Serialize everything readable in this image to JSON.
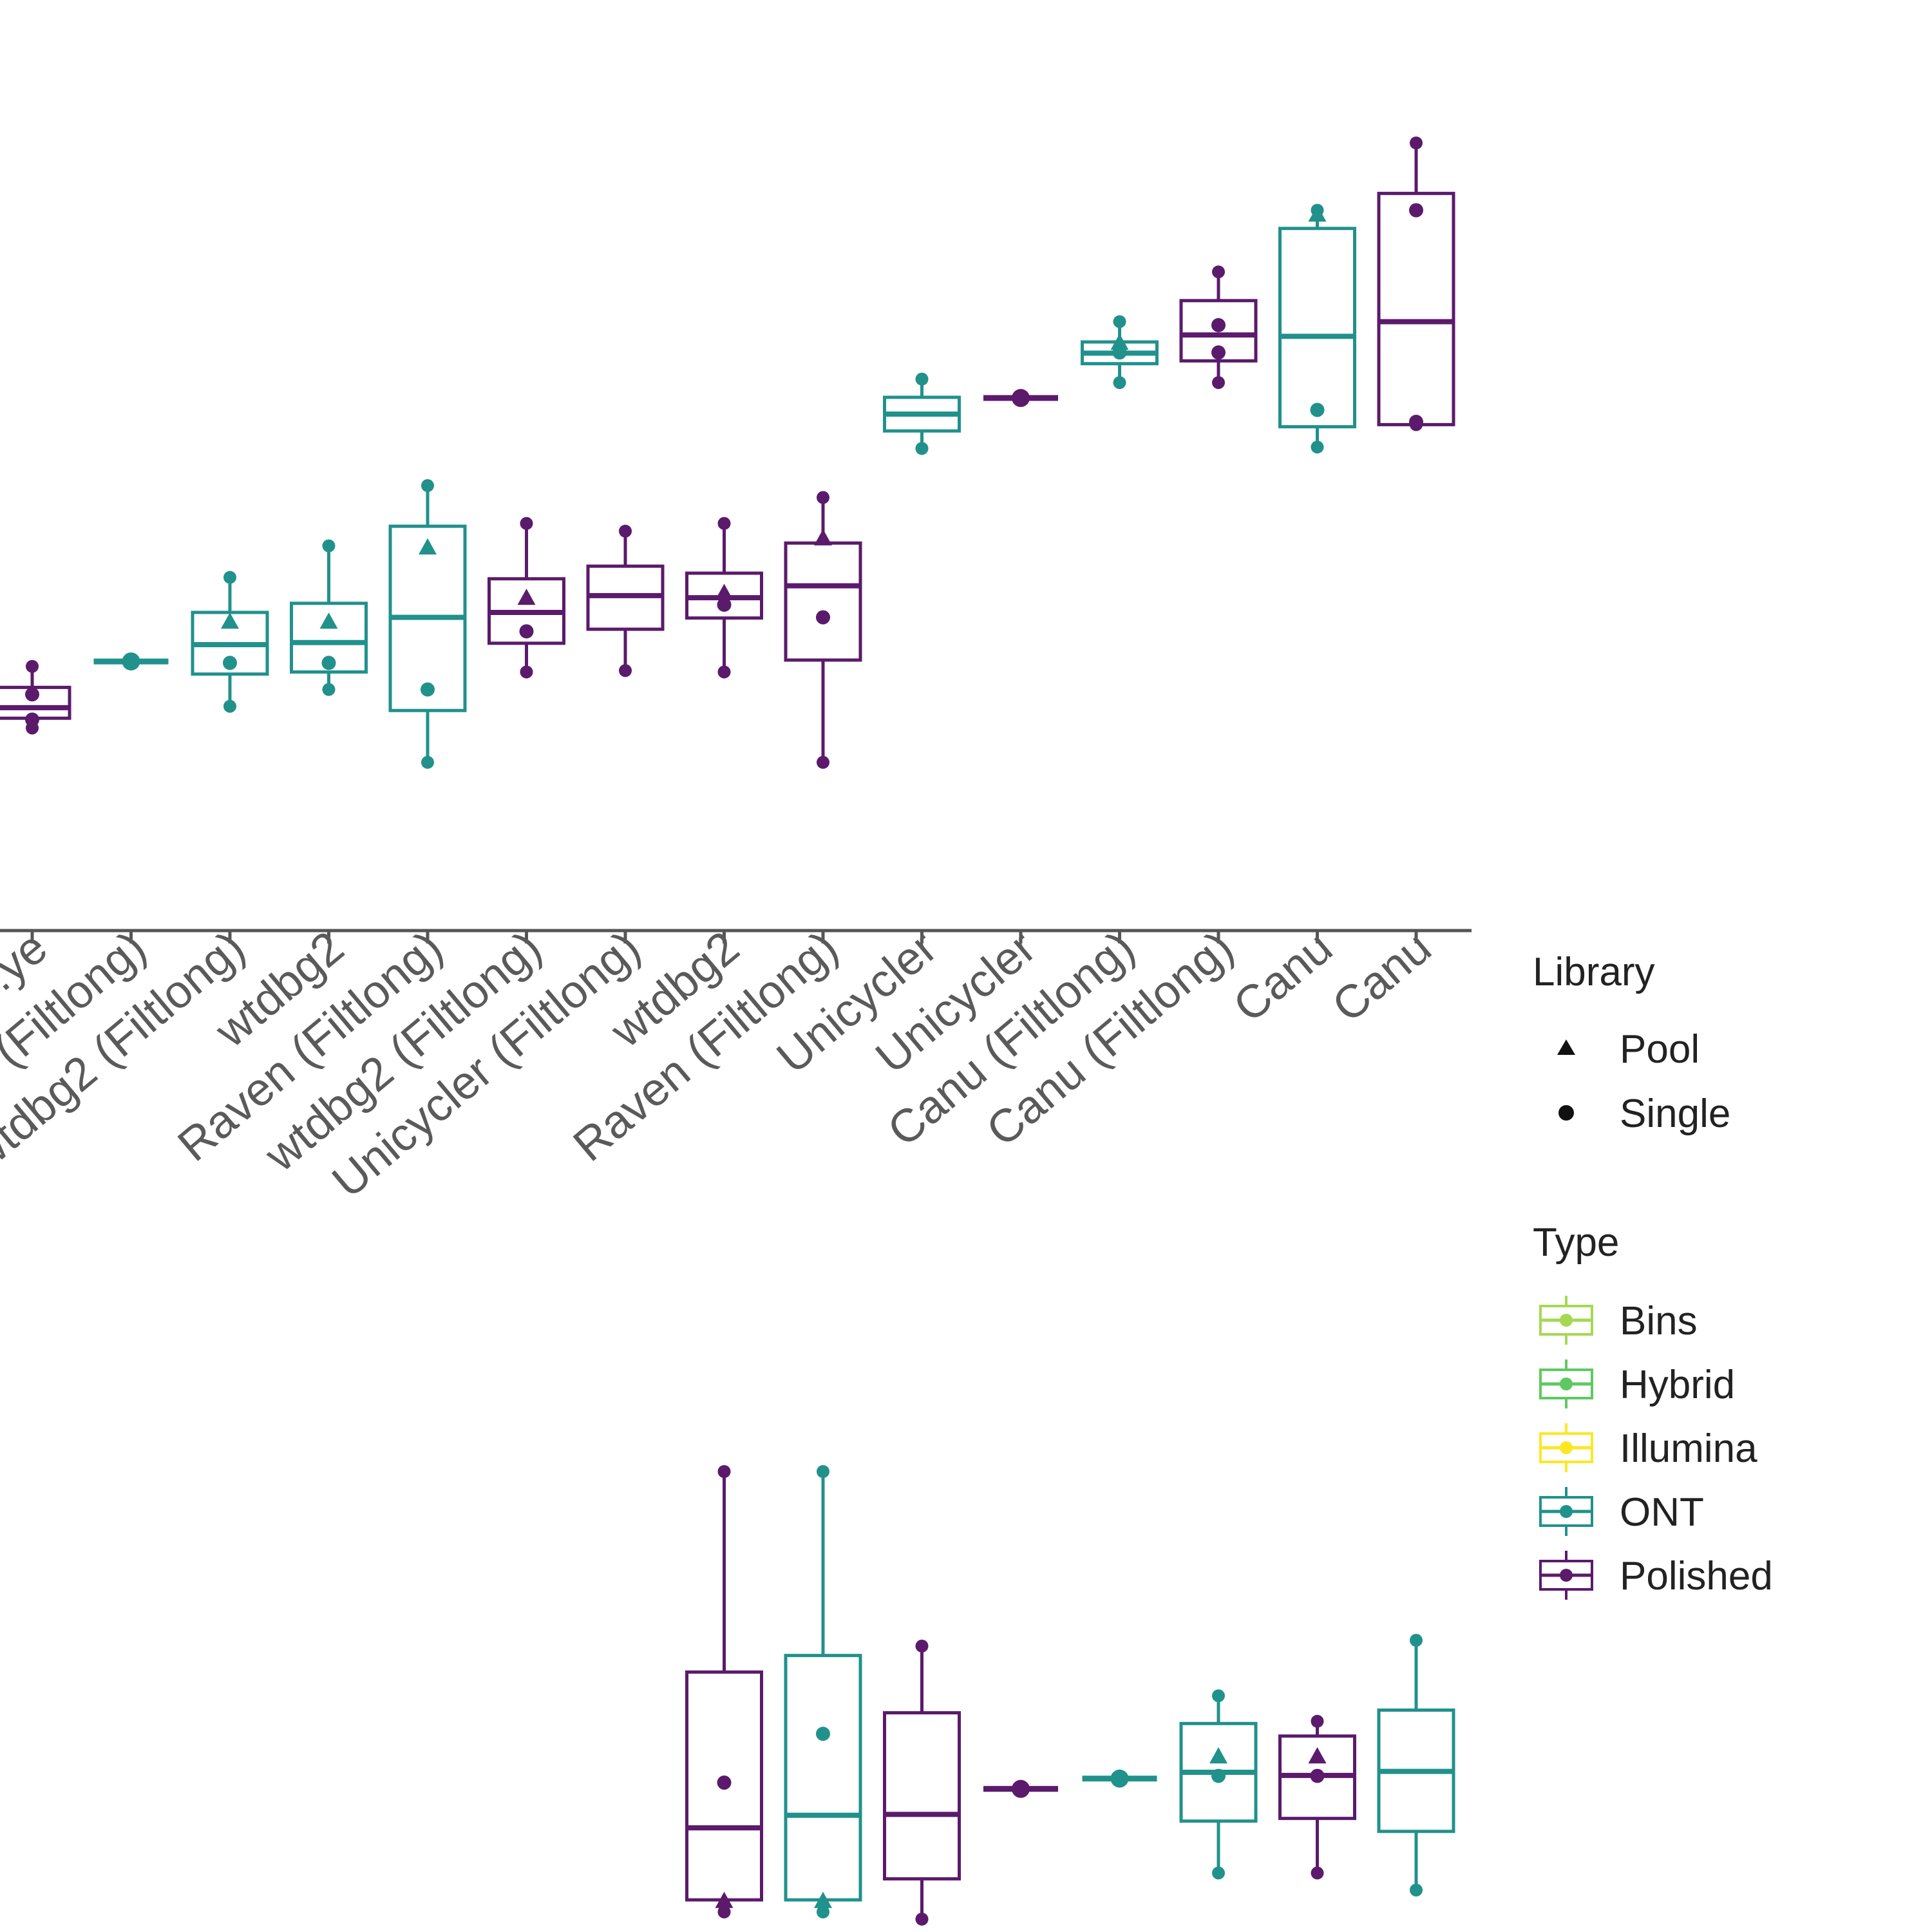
{
  "chart_data": {
    "type": "boxplot",
    "legend_position": "right",
    "legend": {
      "library": {
        "title": "Library",
        "items": [
          {
            "label": "Pool",
            "shape": "triangle"
          },
          {
            "label": "Single",
            "shape": "circle"
          }
        ]
      },
      "type": {
        "title": "Type",
        "items": [
          {
            "label": "Bins",
            "color": "#a6d854"
          },
          {
            "label": "Hybrid",
            "color": "#5ec962"
          },
          {
            "label": "Illumina",
            "color": "#fde725"
          },
          {
            "label": "ONT",
            "color": "#21918c"
          },
          {
            "label": "Polished",
            "color": "#5b1a6b"
          }
        ]
      }
    },
    "colors": {
      "ONT": "#21918c",
      "Polished": "#5b1a6b",
      "axis": "#555555"
    },
    "panels": [
      {
        "name": "top",
        "ylim": [
          0,
          100
        ],
        "categories": [
          "...ye",
          "...r (Filtlong)",
          "wtdbg2 (Filtlong)",
          "wtdbg2",
          "Raven (Filtlong)",
          "wtdbg2 (Filtlong)",
          "Unicycler (Filtlong)",
          "wtdbg2",
          "Raven (Filtlong)",
          "Unicycler",
          "Unicycler",
          "Canu (Filtlong)",
          "Canu (Filtlong)",
          "Canu",
          "Canu"
        ],
        "series": [
          {
            "type": "Polished",
            "min": 16.5,
            "q1": 17.9,
            "median": 19.4,
            "q3": 22.3,
            "max": 25.3,
            "points": [
              {
                "y": 21.3,
                "shape": "circle"
              },
              {
                "y": 17.7,
                "shape": "circle"
              }
            ]
          },
          {
            "type": "ONT",
            "min": 26.0,
            "q1": 26.0,
            "median": 26.0,
            "q3": 26.0,
            "max": 26.0,
            "points": [
              {
                "y": 26.0,
                "shape": "circle"
              }
            ]
          },
          {
            "type": "ONT",
            "min": 19.6,
            "q1": 24.2,
            "median": 28.4,
            "q3": 33.0,
            "max": 38.0,
            "points": [
              {
                "y": 31.7,
                "shape": "triangle"
              },
              {
                "y": 25.8,
                "shape": "circle"
              }
            ]
          },
          {
            "type": "ONT",
            "min": 22.0,
            "q1": 24.5,
            "median": 28.7,
            "q3": 34.3,
            "max": 42.5,
            "points": [
              {
                "y": 31.7,
                "shape": "triangle"
              },
              {
                "y": 25.8,
                "shape": "circle"
              }
            ]
          },
          {
            "type": "ONT",
            "min": 11.6,
            "q1": 19.0,
            "median": 32.3,
            "q3": 45.3,
            "max": 51.1,
            "points": [
              {
                "y": 42.3,
                "shape": "triangle"
              },
              {
                "y": 22.0,
                "shape": "circle"
              }
            ]
          },
          {
            "type": "Polished",
            "min": 24.5,
            "q1": 28.6,
            "median": 33.0,
            "q3": 37.8,
            "max": 45.7,
            "points": [
              {
                "y": 35.1,
                "shape": "triangle"
              },
              {
                "y": 30.3,
                "shape": "circle"
              }
            ]
          },
          {
            "type": "Polished",
            "min": 24.7,
            "q1": 30.6,
            "median": 35.4,
            "q3": 39.6,
            "max": 44.6,
            "points": []
          },
          {
            "type": "Polished",
            "min": 24.5,
            "q1": 32.2,
            "median": 35.1,
            "q3": 38.6,
            "max": 45.7,
            "points": [
              {
                "y": 35.8,
                "shape": "triangle"
              },
              {
                "y": 34.1,
                "shape": "circle"
              }
            ]
          },
          {
            "type": "Polished",
            "min": 11.6,
            "q1": 26.2,
            "median": 36.8,
            "q3": 42.9,
            "max": 49.4,
            "points": [
              {
                "y": 43.6,
                "shape": "triangle"
              },
              {
                "y": 32.3,
                "shape": "circle"
              }
            ]
          },
          {
            "type": "ONT",
            "min": 56.4,
            "q1": 58.9,
            "median": 61.3,
            "q3": 63.7,
            "max": 66.3,
            "points": []
          },
          {
            "type": "Polished",
            "min": 63.6,
            "q1": 63.6,
            "median": 63.6,
            "q3": 63.6,
            "max": 63.6,
            "points": [
              {
                "y": 63.6,
                "shape": "circle"
              }
            ]
          },
          {
            "type": "ONT",
            "min": 65.8,
            "q1": 68.5,
            "median": 70.0,
            "q3": 71.6,
            "max": 74.5,
            "points": [
              {
                "y": 71.5,
                "shape": "triangle"
              },
              {
                "y": 70.1,
                "shape": "circle"
              }
            ]
          },
          {
            "type": "Polished",
            "min": 65.8,
            "q1": 68.9,
            "median": 72.6,
            "q3": 77.5,
            "max": 81.6,
            "points": [
              {
                "y": 74.0,
                "shape": "circle"
              },
              {
                "y": 70.1,
                "shape": "circle"
              }
            ]
          },
          {
            "type": "ONT",
            "min": 56.6,
            "q1": 59.5,
            "median": 72.4,
            "q3": 87.8,
            "max": 90.4,
            "points": [
              {
                "y": 89.8,
                "shape": "triangle"
              },
              {
                "y": 61.9,
                "shape": "circle"
              }
            ]
          },
          {
            "type": "Polished",
            "min": 59.8,
            "q1": 59.8,
            "median": 74.5,
            "q3": 92.8,
            "max": 100.0,
            "points": [
              {
                "y": 90.4,
                "shape": "circle"
              },
              {
                "y": 60.2,
                "shape": "circle"
              }
            ]
          }
        ]
      },
      {
        "name": "bottom",
        "ylim": [
          0,
          100
        ],
        "visible_from_index": 7,
        "series": [
          {
            "type": "Polished",
            "min": 1.6,
            "q1": 4.3,
            "median": 20.4,
            "q3": 55.2,
            "max": 100.0,
            "points": [
              {
                "y": 30.5,
                "shape": "circle"
              },
              {
                "y": 4.1,
                "shape": "triangle"
              }
            ]
          },
          {
            "type": "ONT",
            "min": 1.6,
            "q1": 4.3,
            "median": 23.2,
            "q3": 58.9,
            "max": 100.0,
            "points": [
              {
                "y": 41.4,
                "shape": "circle"
              },
              {
                "y": 4.1,
                "shape": "triangle"
              }
            ]
          },
          {
            "type": "Polished",
            "min": 0.0,
            "q1": 9.0,
            "median": 23.4,
            "q3": 46.1,
            "max": 61.0,
            "points": []
          },
          {
            "type": "Polished",
            "min": 29.1,
            "q1": 29.1,
            "median": 29.1,
            "q3": 29.1,
            "max": 29.1,
            "points": [
              {
                "y": 29.1,
                "shape": "circle"
              }
            ]
          },
          {
            "type": "ONT",
            "min": 31.4,
            "q1": 31.4,
            "median": 31.4,
            "q3": 31.4,
            "max": 31.4,
            "points": [
              {
                "y": 31.4,
                "shape": "circle"
              }
            ]
          },
          {
            "type": "ONT",
            "min": 10.3,
            "q1": 21.9,
            "median": 32.8,
            "q3": 43.7,
            "max": 49.9,
            "points": [
              {
                "y": 36.4,
                "shape": "triangle"
              },
              {
                "y": 32.0,
                "shape": "circle"
              }
            ]
          },
          {
            "type": "Polished",
            "min": 10.3,
            "q1": 22.5,
            "median": 32.1,
            "q3": 40.9,
            "max": 44.2,
            "points": [
              {
                "y": 36.4,
                "shape": "triangle"
              },
              {
                "y": 32.0,
                "shape": "circle"
              }
            ]
          },
          {
            "type": "ONT",
            "min": 6.5,
            "q1": 19.6,
            "median": 33.0,
            "q3": 46.7,
            "max": 62.3,
            "points": []
          }
        ]
      }
    ]
  }
}
